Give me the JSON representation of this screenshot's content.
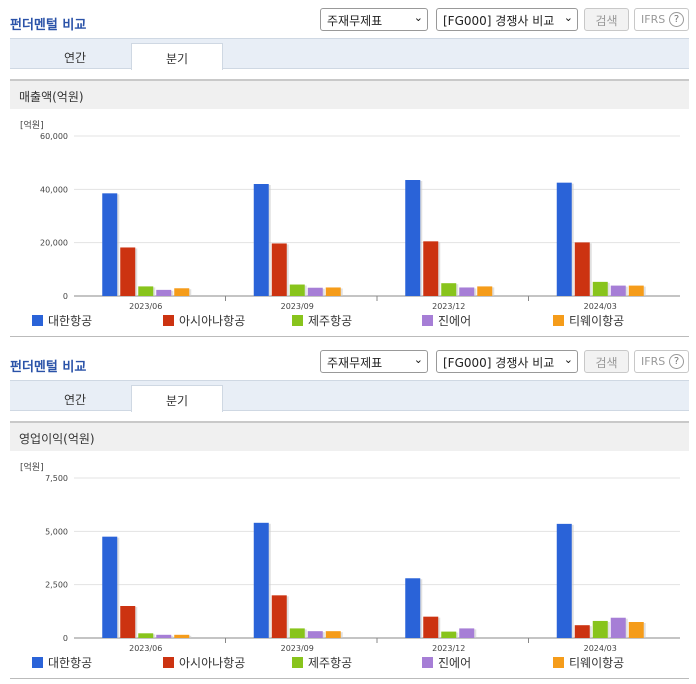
{
  "colors": {
    "대한항공": "#2a63d8",
    "아시아나항공": "#cc3311",
    "제주항공": "#88c41c",
    "진에어": "#a67ed6",
    "티웨이항공": "#f59c1a",
    "title": "#2a52a8"
  },
  "panels": [
    {
      "title": "펀더멘털 비교",
      "select1": "주재무제표",
      "select2": "[FG000] 경쟁사 비교",
      "search_button": "검색",
      "ifrs_button": "IFRS",
      "help_icon": "?",
      "tabs": [
        "연간",
        "분기"
      ],
      "active_tab": "분기",
      "chart_title": "매출액(억원)",
      "unit": "[억원]",
      "chart_data": {
        "type": "bar",
        "categories": [
          "2023/06",
          "2023/09",
          "2023/12",
          "2024/03"
        ],
        "y_ticks": [
          "0",
          "20,000",
          "40,000",
          "60,000"
        ],
        "ylim": [
          0,
          60000
        ],
        "series": [
          {
            "name": "대한항공",
            "values": [
              38500,
              42000,
              43500,
              42500
            ]
          },
          {
            "name": "아시아나항공",
            "values": [
              18200,
              19700,
              20500,
              20100
            ]
          },
          {
            "name": "제주항공",
            "values": [
              3600,
              4300,
              4800,
              5300
            ]
          },
          {
            "name": "진에어",
            "values": [
              2300,
              3100,
              3200,
              3900
            ]
          },
          {
            "name": "티웨이항공",
            "values": [
              2900,
              3200,
              3600,
              3900
            ]
          }
        ]
      }
    },
    {
      "title": "펀더멘털 비교",
      "select1": "주재무제표",
      "select2": "[FG000] 경쟁사 비교",
      "search_button": "검색",
      "ifrs_button": "IFRS",
      "help_icon": "?",
      "tabs": [
        "연간",
        "분기"
      ],
      "active_tab": "분기",
      "chart_title": "영업이익(억원)",
      "unit": "[억원]",
      "chart_data": {
        "type": "bar",
        "categories": [
          "2023/06",
          "2023/09",
          "2023/12",
          "2024/03"
        ],
        "y_ticks": [
          "0",
          "2,500",
          "5,000",
          "7,500"
        ],
        "ylim": [
          0,
          7500
        ],
        "series": [
          {
            "name": "대한항공",
            "values": [
              4750,
              5400,
              2800,
              5350
            ]
          },
          {
            "name": "아시아나항공",
            "values": [
              1500,
              2000,
              1000,
              600
            ]
          },
          {
            "name": "제주항공",
            "values": [
              220,
              450,
              300,
              800
            ]
          },
          {
            "name": "진에어",
            "values": [
              150,
              320,
              450,
              950
            ]
          },
          {
            "name": "티웨이항공",
            "values": [
              150,
              320,
              0,
              750
            ]
          }
        ]
      }
    }
  ]
}
